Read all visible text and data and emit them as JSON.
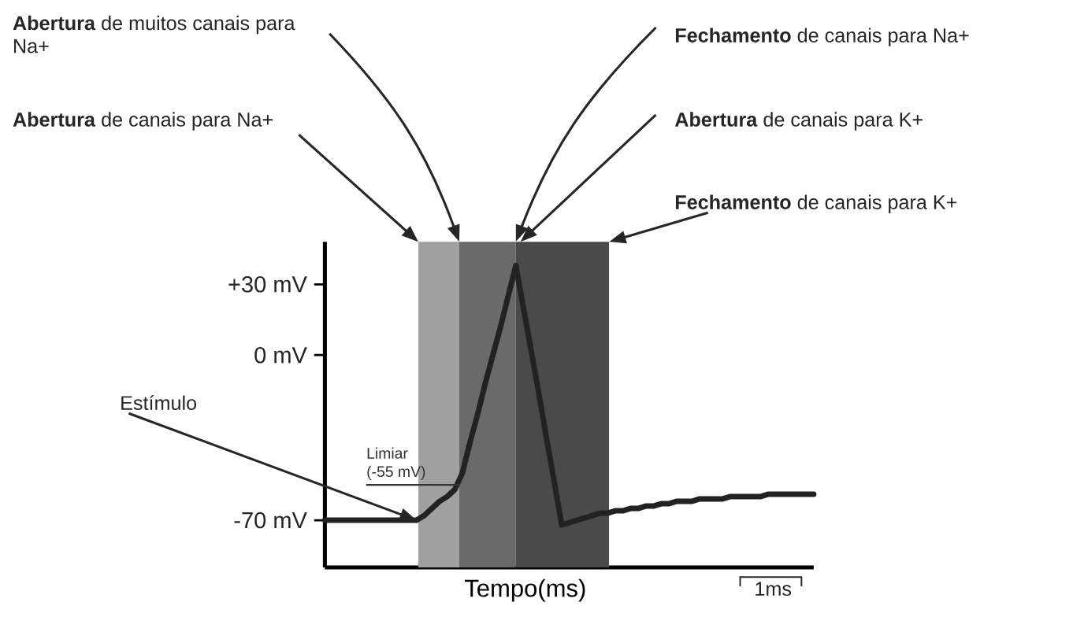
{
  "chart_data": {
    "type": "line",
    "xlabel": "Tempo(ms)",
    "categories": [
      null,
      null,
      null,
      null,
      null,
      null,
      null,
      null,
      null,
      null,
      null,
      null,
      null,
      null,
      null,
      null,
      null,
      null,
      null,
      null,
      null,
      null,
      null,
      null,
      null,
      null,
      null,
      null,
      null,
      null,
      null,
      null,
      null,
      null,
      null,
      null,
      null,
      null,
      null,
      null,
      null,
      null,
      null,
      null,
      null,
      null,
      null,
      null,
      null,
      null,
      null,
      null,
      null,
      null,
      null,
      null,
      null,
      null,
      null,
      null,
      null,
      null,
      null,
      null,
      null
    ],
    "series": [
      {
        "color": "#222222",
        "values": [
          -70,
          -70,
          -70,
          -70,
          -70,
          -70,
          -70,
          -70,
          -70,
          -70,
          -70,
          -70,
          -70,
          -68,
          -65,
          -62,
          -60,
          -57,
          -50,
          -37,
          -25,
          -12,
          0,
          12,
          25,
          38,
          20,
          2,
          -16,
          -35,
          -53,
          -72,
          -71,
          -70,
          -69,
          -68,
          -67,
          -67,
          -66,
          -66,
          -65,
          -65,
          -64,
          -64,
          -63,
          -63,
          -62,
          -62,
          -62,
          -61,
          -61,
          -61,
          -61,
          -60,
          -60,
          -60,
          -60,
          -60,
          -59,
          -59,
          -59,
          -59,
          -59,
          -59,
          -59
        ]
      }
    ],
    "ylim": [
      -90,
      48
    ],
    "yticks": [
      {
        "value": 30,
        "label": "+30 mV"
      },
      {
        "value": 0,
        "label": "0 mV"
      },
      {
        "value": -70,
        "label": "-70 mV"
      }
    ],
    "tick_labels": "y",
    "marker": "none",
    "line_style": "solid",
    "ref_lines": [
      {
        "axis": "y",
        "value": -55,
        "label": "Limiar (-55 mV)",
        "color": "#333333"
      }
    ],
    "annotations": [
      "**Abertura** de muitos canais para Na+",
      "**Abertura** de canais para Na+",
      "**Fechamento** de canais para Na+",
      "**Abertura** de canais para K+",
      "**Fechamento** de canais para K+",
      "Estímulo",
      "1ms"
    ]
  }
}
